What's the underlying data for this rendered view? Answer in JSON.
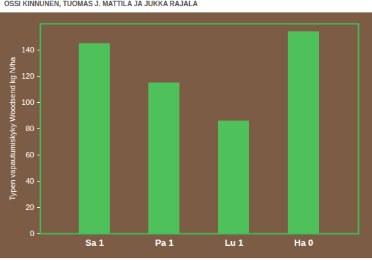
{
  "header": {
    "byline": "OSSI KINNUNEN, TUOMAS J. MATTILA JA JUKKA RAJALA"
  },
  "chart_data": {
    "type": "bar",
    "y_label": "Typen vapautumiskyky Woodsend kg N/ha",
    "categories": [
      "Sa 1",
      "Pa 1",
      "Lu 1",
      "Ha 0"
    ],
    "values": [
      145,
      115,
      86,
      154
    ],
    "color": "#45d25e",
    "ylim": [
      0,
      160
    ],
    "yticks": [
      0,
      20,
      40,
      60,
      80,
      100,
      120,
      140
    ],
    "grid": false
  }
}
